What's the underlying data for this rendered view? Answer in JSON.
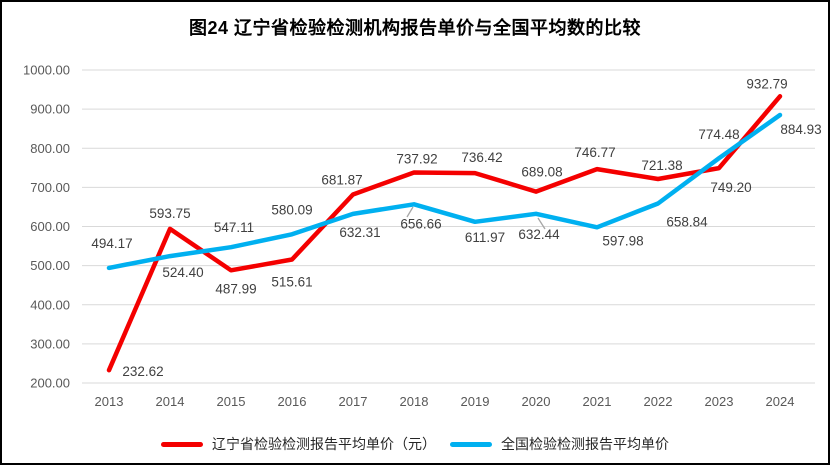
{
  "title": "图24 辽宁省检验检测机构报告单价与全国平均数的比较",
  "colors": {
    "liaoning": "#F40000",
    "national": "#00B0F0",
    "gridline": "#D9D9D9",
    "axis_text": "#595959",
    "data_label": "#404040",
    "leader": "#A6A6A6",
    "legend_text": "#262626",
    "frame_border": "#000000"
  },
  "chart_data": {
    "type": "line",
    "title": "图24 辽宁省检验检测机构报告单价与全国平均数的比较",
    "x_tick_labels": [
      "2013",
      "2014",
      "2015",
      "2016",
      "2017",
      "2018",
      "2019",
      "2020",
      "2021",
      "2022",
      "2023",
      "2024"
    ],
    "y_tick_labels": [
      "1000.00",
      "900.00",
      "800.00",
      "700.00",
      "600.00",
      "500.00",
      "400.00",
      "300.00",
      "200.00"
    ],
    "ylim": [
      200,
      1000
    ],
    "ytick_step": 100,
    "grid": true,
    "legend_position": "bottom",
    "series": [
      {
        "key": "liaoning",
        "name": "辽宁省检验检测报告平均单价（元）",
        "color": "#F40000",
        "values": [
          232.62,
          593.75,
          487.99,
          515.61,
          681.87,
          737.92,
          736.42,
          689.08,
          746.77,
          721.38,
          749.2,
          932.79
        ],
        "label_offsets": [
          [
            34,
            6
          ],
          [
            0,
            -11
          ],
          [
            5,
            23
          ],
          [
            0,
            27
          ],
          [
            -11,
            -10
          ],
          [
            3,
            -9
          ],
          [
            7,
            -11
          ],
          [
            6,
            -15
          ],
          [
            -2,
            -12
          ],
          [
            4,
            -9
          ],
          [
            12,
            24
          ],
          [
            -13,
            -8
          ]
        ]
      },
      {
        "key": "national",
        "name": "全国检验检测报告平均单价",
        "color": "#00B0F0",
        "values": [
          494.17,
          524.4,
          547.11,
          580.09,
          632.31,
          656.66,
          611.97,
          632.44,
          597.98,
          658.84,
          774.48,
          884.93
        ],
        "label_offsets": [
          [
            3,
            -20
          ],
          [
            13,
            21
          ],
          [
            3,
            -15
          ],
          [
            0,
            -20
          ],
          [
            7,
            23
          ],
          [
            7,
            24
          ],
          [
            10,
            20
          ],
          [
            3,
            25
          ],
          [
            26,
            18
          ],
          [
            29,
            23
          ],
          [
            0,
            -19
          ],
          [
            21,
            19
          ]
        ]
      }
    ],
    "leader_lines": [
      [
        411,
        205,
        405,
        215
      ],
      [
        536,
        216,
        543,
        227
      ]
    ]
  }
}
